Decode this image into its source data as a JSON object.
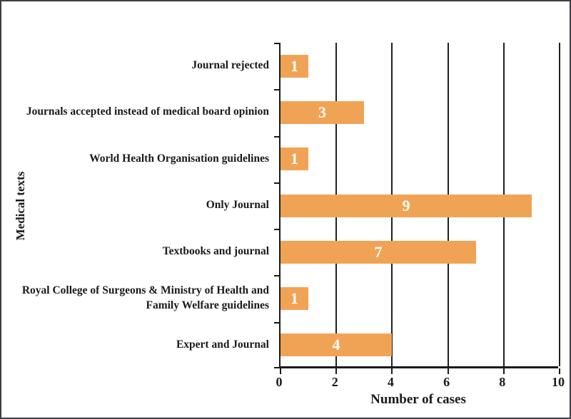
{
  "chart_data": {
    "type": "bar",
    "orientation": "horizontal",
    "categories": [
      "Journal rejected",
      "Journals accepted instead of medical board opinion",
      "World Health Organisation guidelines",
      "Only Journal",
      "Textbooks and journal",
      "Royal College of Surgeons & Ministry of Health and Family Welfare guidelines",
      "Expert and Journal"
    ],
    "values": [
      1,
      3,
      1,
      9,
      7,
      1,
      4
    ],
    "value_labels": [
      "1",
      "3",
      "1",
      "9",
      "7",
      "1",
      "4"
    ],
    "xlabel": "Number of cases",
    "ylabel": "Medical texts",
    "xlim": [
      0,
      10
    ],
    "xticks": [
      0,
      2,
      4,
      6,
      8,
      10
    ],
    "grid": "vertical",
    "legend": "none",
    "title": "",
    "colors": {
      "bar": "#F1A355",
      "value_label": "#FFFFFF",
      "axis": "#1A1A1A",
      "gridline": "#1F1F1F",
      "text": "#1A1A1A",
      "frame_border": "#3D3D44",
      "background": "#FFFFFF"
    }
  }
}
